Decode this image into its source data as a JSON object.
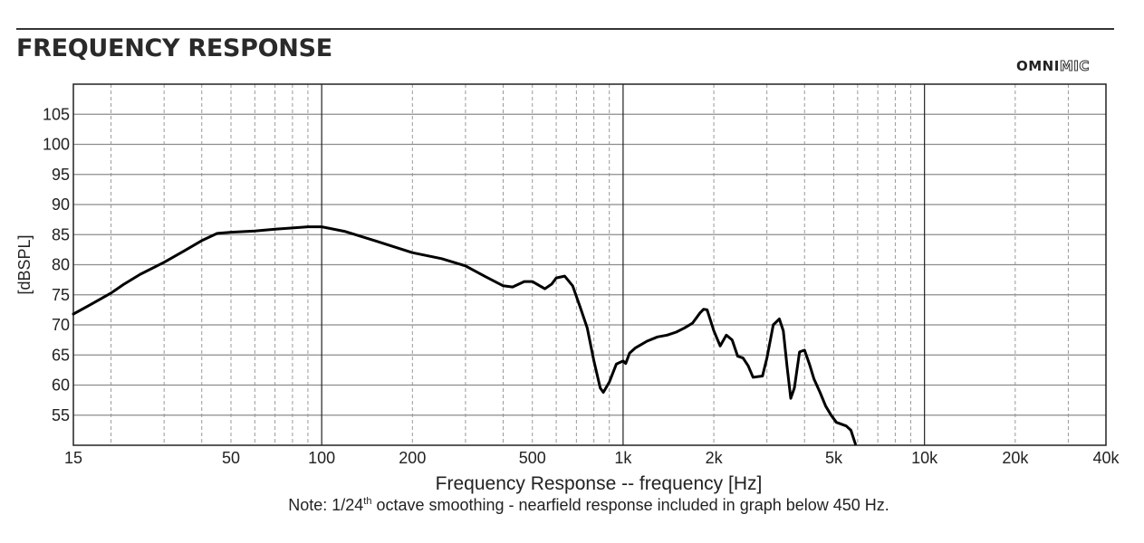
{
  "header": {
    "title": "FREQUENCY RESPONSE",
    "brand_left": "OMNI",
    "brand_right": "MIC"
  },
  "note": {
    "prefix": "Note: 1/24",
    "sup": "th",
    "suffix": " octave smoothing - nearfield response included in graph below 450 Hz."
  },
  "chart_data": {
    "type": "line",
    "title": "FREQUENCY RESPONSE",
    "xlabel": "Frequency Response -- frequency [Hz]",
    "ylabel": "[dBSPL]",
    "x_scale": "log",
    "xlim": [
      15,
      40000
    ],
    "ylim": [
      50,
      110
    ],
    "grid": true,
    "x_ticks": [
      {
        "value": 15,
        "label": "15"
      },
      {
        "value": 50,
        "label": "50"
      },
      {
        "value": 100,
        "label": "100"
      },
      {
        "value": 200,
        "label": "200"
      },
      {
        "value": 500,
        "label": "500"
      },
      {
        "value": 1000,
        "label": "1k"
      },
      {
        "value": 2000,
        "label": "2k"
      },
      {
        "value": 5000,
        "label": "5k"
      },
      {
        "value": 10000,
        "label": "10k"
      },
      {
        "value": 20000,
        "label": "20k"
      },
      {
        "value": 40000,
        "label": "40k"
      }
    ],
    "y_ticks": [
      55,
      60,
      65,
      70,
      75,
      80,
      85,
      90,
      95,
      100,
      105
    ],
    "line_color": "#000000",
    "series": [
      {
        "points": [
          [
            15,
            71.8
          ],
          [
            17,
            73.3
          ],
          [
            20,
            75.3
          ],
          [
            22,
            76.7
          ],
          [
            25,
            78.4
          ],
          [
            30,
            80.4
          ],
          [
            35,
            82.3
          ],
          [
            40,
            84.0
          ],
          [
            45,
            85.2
          ],
          [
            50,
            85.4
          ],
          [
            60,
            85.6
          ],
          [
            70,
            85.9
          ],
          [
            80,
            86.1
          ],
          [
            90,
            86.3
          ],
          [
            100,
            86.3
          ],
          [
            120,
            85.5
          ],
          [
            150,
            84.0
          ],
          [
            200,
            82.0
          ],
          [
            250,
            81.0
          ],
          [
            300,
            79.8
          ],
          [
            350,
            78.0
          ],
          [
            400,
            76.5
          ],
          [
            430,
            76.3
          ],
          [
            470,
            77.2
          ],
          [
            500,
            77.2
          ],
          [
            550,
            76.0
          ],
          [
            580,
            76.8
          ],
          [
            600,
            77.8
          ],
          [
            640,
            78.1
          ],
          [
            680,
            76.5
          ],
          [
            720,
            73.0
          ],
          [
            760,
            69.5
          ],
          [
            800,
            64.0
          ],
          [
            840,
            59.5
          ],
          [
            860,
            58.8
          ],
          [
            900,
            60.5
          ],
          [
            950,
            63.5
          ],
          [
            1000,
            64.0
          ],
          [
            1020,
            63.6
          ],
          [
            1050,
            65.3
          ],
          [
            1100,
            66.2
          ],
          [
            1200,
            67.3
          ],
          [
            1300,
            68.0
          ],
          [
            1400,
            68.3
          ],
          [
            1500,
            68.8
          ],
          [
            1600,
            69.5
          ],
          [
            1700,
            70.3
          ],
          [
            1800,
            72.0
          ],
          [
            1850,
            72.6
          ],
          [
            1900,
            72.5
          ],
          [
            2000,
            69.0
          ],
          [
            2100,
            66.5
          ],
          [
            2200,
            68.3
          ],
          [
            2300,
            67.5
          ],
          [
            2400,
            64.8
          ],
          [
            2500,
            64.5
          ],
          [
            2600,
            63.2
          ],
          [
            2700,
            61.3
          ],
          [
            2900,
            61.5
          ],
          [
            3000,
            64.5
          ],
          [
            3150,
            70.0
          ],
          [
            3300,
            71.0
          ],
          [
            3400,
            69.0
          ],
          [
            3500,
            63.0
          ],
          [
            3600,
            57.8
          ],
          [
            3700,
            59.5
          ],
          [
            3850,
            65.5
          ],
          [
            4000,
            65.8
          ],
          [
            4150,
            63.5
          ],
          [
            4300,
            61.0
          ],
          [
            4500,
            58.8
          ],
          [
            4700,
            56.5
          ],
          [
            4900,
            55.0
          ],
          [
            5100,
            53.8
          ],
          [
            5300,
            53.5
          ],
          [
            5500,
            53.2
          ],
          [
            5700,
            52.5
          ],
          [
            5900,
            50.2
          ]
        ]
      }
    ]
  }
}
